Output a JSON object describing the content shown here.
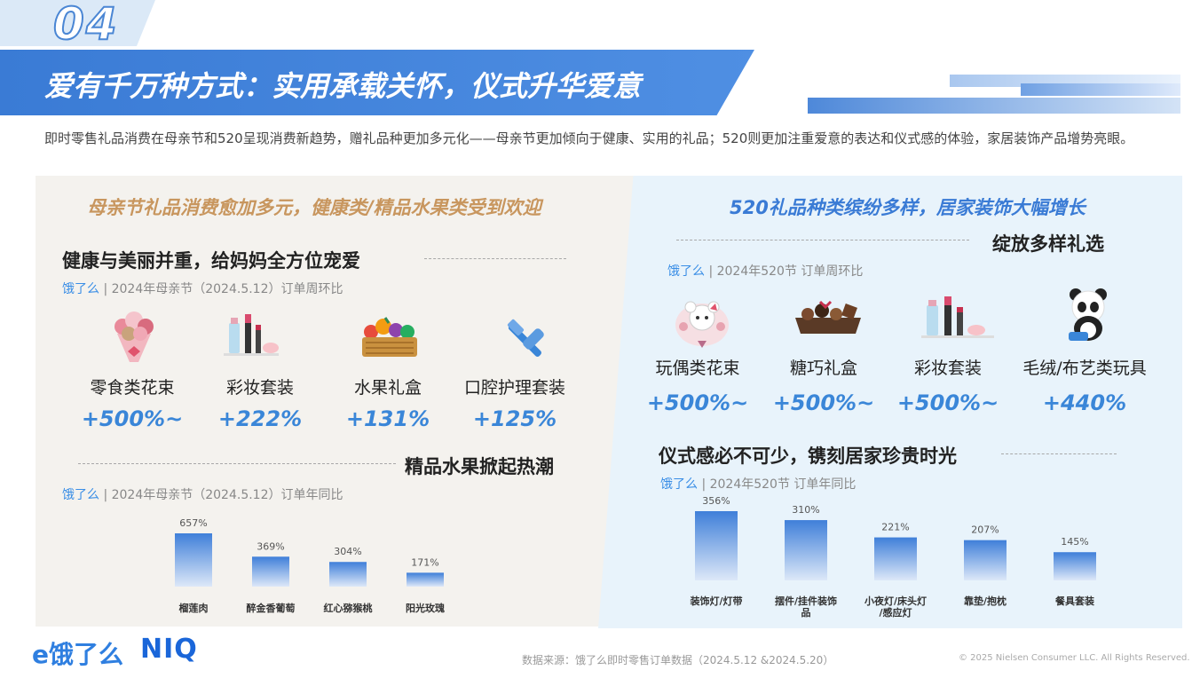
{
  "header": {
    "page_number": "04",
    "title": "爱有千万种方式：实用承载关怀，仪式升华爱意"
  },
  "intro": "即时零售礼品消费在母亲节和520呈现消费新趋势，赠礼品种更加多元化——母亲节更加倾向于健康、实用的礼品；520则更加注重爱意的表达和仪式感的体验，家居装饰产品增势亮眼。",
  "left_panel": {
    "heading": "母亲节礼品消费愈加多元，健康类/精品水果类受到欢迎",
    "section1": {
      "title": "健康与美丽并重，给妈妈全方位宠爱",
      "source_brand": "饿了么",
      "source_rest": " | 2024年母亲节（2024.5.12）订单周环比",
      "items": [
        {
          "label": "零食类花束",
          "value": "+500%~",
          "icon": "flower-bouquet-icon"
        },
        {
          "label": "彩妆套装",
          "value": "+222%",
          "icon": "makeup-set-icon"
        },
        {
          "label": "水果礼盒",
          "value": "+131%",
          "icon": "fruit-basket-icon"
        },
        {
          "label": "口腔护理套装",
          "value": "+125%",
          "icon": "oral-care-icon"
        }
      ]
    },
    "section2": {
      "title": "精品水果掀起热潮",
      "source_brand": "饿了么",
      "source_rest": " | 2024年母亲节（2024.5.12）订单年同比"
    }
  },
  "right_panel": {
    "heading": "520礼品种类缤纷多样，居家装饰大幅增长",
    "section1": {
      "title": "绽放多样礼选",
      "source_brand": "饿了么",
      "source_rest": " | 2024年520节 订单周环比",
      "items": [
        {
          "label": "玩偶类花束",
          "value": "+500%~",
          "icon": "doll-bouquet-icon"
        },
        {
          "label": "糖巧礼盒",
          "value": "+500%~",
          "icon": "chocolate-box-icon"
        },
        {
          "label": "彩妆套装",
          "value": "+500%~",
          "icon": "makeup-set-icon"
        },
        {
          "label": "毛绒/布艺类玩具",
          "value": "+440%",
          "icon": "panda-toy-icon"
        }
      ]
    },
    "section2": {
      "title": "仪式感必不可少，镌刻居家珍贵时光",
      "source_brand": "饿了么",
      "source_rest": " | 2024年520节 订单年同比"
    }
  },
  "chart_data": [
    {
      "type": "bar",
      "title": "",
      "categories": [
        "榴莲肉",
        "醉金香葡萄",
        "红心猕猴桃",
        "阳光玫瑰"
      ],
      "values": [
        657,
        369,
        304,
        171
      ],
      "value_labels": [
        "657%",
        "369%",
        "304%",
        "171%"
      ],
      "unit": "%",
      "ylim": [
        0,
        657
      ],
      "grid": false
    },
    {
      "type": "bar",
      "title": "",
      "categories": [
        "装饰灯/灯带",
        "摆件/挂件装饰品",
        "小夜灯/床头灯/感应灯",
        "靠垫/抱枕",
        "餐具套装"
      ],
      "category_lines": [
        [
          "装饰灯/灯带"
        ],
        [
          "摆件/挂件装饰",
          "品"
        ],
        [
          "小夜灯/床头灯",
          "/感应灯"
        ],
        [
          "靠垫/抱枕"
        ],
        [
          "餐具套装"
        ]
      ],
      "values": [
        356,
        310,
        221,
        207,
        145
      ],
      "value_labels": [
        "356%",
        "310%",
        "221%",
        "207%",
        "145%"
      ],
      "unit": "%",
      "ylim": [
        0,
        356
      ],
      "grid": false
    }
  ],
  "footer": {
    "logo_eleme": "e饿了么",
    "logo_niq": "NIQ",
    "source": "数据来源：饿了么即时零售订单数据（2024.5.12 &2024.5.20）",
    "copyright": "© 2025 Nielsen Consumer LLC. All Rights Reserved."
  },
  "colors": {
    "accent_blue": "#3a86d8",
    "gold": "#c8965e",
    "bar_top": "#3f7fd9",
    "bar_bottom": "#dde8f8"
  }
}
